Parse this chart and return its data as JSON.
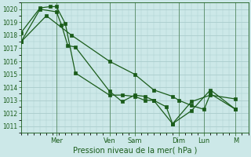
{
  "bg_color": "#cce8e8",
  "grid_color": "#aacccc",
  "line_color": "#1a5c1a",
  "xlabel": "Pression niveau de la mer( hPa )",
  "ylim": [
    1010.5,
    1020.5
  ],
  "yticks": [
    1011,
    1012,
    1013,
    1014,
    1015,
    1016,
    1017,
    1018,
    1019,
    1020
  ],
  "xlim": [
    0,
    18
  ],
  "day_ticks": [
    2.8,
    7.0,
    9.0,
    12.5,
    14.5,
    17.0
  ],
  "day_labels": [
    "Mer",
    "Ven",
    "Sam",
    "Dim",
    "Lun",
    "M"
  ],
  "line1_x": [
    0.0,
    1.5,
    2.8,
    3.2,
    3.7,
    4.3,
    7.0,
    8.0,
    9.0,
    9.8,
    10.5,
    11.5,
    12.0,
    13.5,
    15.0,
    17.0
  ],
  "line1_y": [
    1017.5,
    1020.0,
    1019.8,
    1018.8,
    1017.2,
    1017.1,
    1013.7,
    1012.9,
    1013.4,
    1013.3,
    1013.0,
    1012.5,
    1011.2,
    1012.2,
    1013.8,
    1012.3
  ],
  "line2_x": [
    0.0,
    1.5,
    2.3,
    2.8,
    3.5,
    4.3,
    7.0,
    8.0,
    9.0,
    9.8,
    10.5,
    12.0,
    13.5,
    15.0,
    17.0
  ],
  "line2_y": [
    1018.2,
    1020.1,
    1020.2,
    1020.2,
    1018.9,
    1015.1,
    1013.4,
    1013.4,
    1013.3,
    1013.0,
    1013.0,
    1011.2,
    1012.9,
    1013.4,
    1013.1
  ],
  "line3_x": [
    0.0,
    2.0,
    4.0,
    7.0,
    9.0,
    10.5,
    12.0,
    12.5,
    13.5,
    14.5,
    15.0,
    17.0
  ],
  "line3_y": [
    1017.5,
    1019.5,
    1018.0,
    1016.0,
    1015.0,
    1013.8,
    1013.3,
    1013.0,
    1012.6,
    1012.3,
    1013.5,
    1012.3
  ],
  "marker_size": 2.5,
  "linewidth": 0.9
}
